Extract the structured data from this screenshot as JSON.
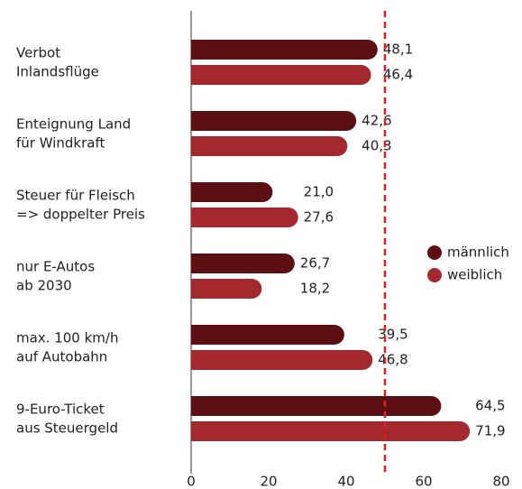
{
  "chart_data": {
    "type": "bar",
    "orientation": "horizontal",
    "categories": [
      [
        "Verbot",
        "Inlandsflüge"
      ],
      [
        "Enteignung Land",
        "für Windkraft"
      ],
      [
        "Steuer für Fleisch",
        "=> doppelter Preis"
      ],
      [
        "nur E-Autos",
        "ab 2030"
      ],
      [
        "max. 100 km/h",
        "auf Autobahn"
      ],
      [
        "9-Euro-Ticket",
        "aus Steuergeld"
      ]
    ],
    "series": [
      {
        "name": "männlich",
        "color": "#5c1014",
        "values": [
          48.1,
          42.6,
          21.0,
          26.7,
          39.5,
          64.5
        ],
        "value_labels": [
          "48,1",
          "42,6",
          "21,0",
          "26,7",
          "39,5",
          "64,5"
        ]
      },
      {
        "name": "weiblich",
        "color": "#a4292f",
        "values": [
          46.4,
          40.3,
          27.6,
          18.2,
          46.8,
          71.9
        ],
        "value_labels": [
          "46,4",
          "40,3",
          "27,6",
          "18,2",
          "46,8",
          "71,9"
        ]
      }
    ],
    "xlim": [
      0,
      80
    ],
    "xticks": [
      0,
      20,
      40,
      60,
      80
    ],
    "reference_line": {
      "value": 50,
      "color": "#d42027"
    },
    "legend": "right"
  }
}
